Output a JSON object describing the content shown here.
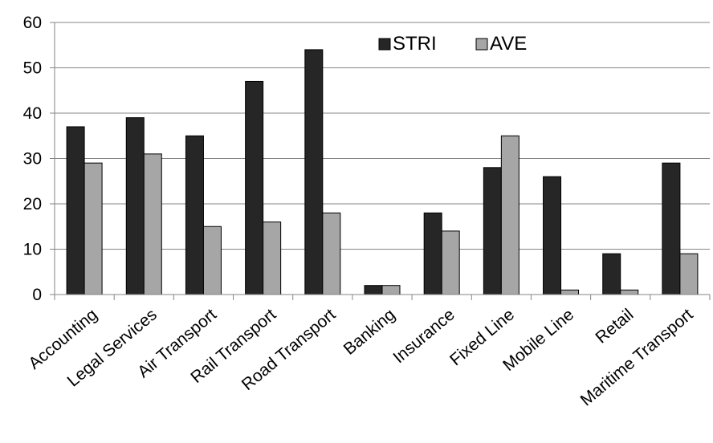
{
  "chart_data": {
    "type": "bar",
    "title": "",
    "xlabel": "",
    "ylabel": "",
    "ylim": [
      0,
      60
    ],
    "yticks": [
      0,
      10,
      20,
      30,
      40,
      50,
      60
    ],
    "grid": true,
    "legend_position": "top-right",
    "categories": [
      "Accounting",
      "Legal Services",
      "Air Transport",
      "Rail Transport",
      "Road Transport",
      "Banking",
      "Insurance",
      "Fixed Line",
      "Mobile Line",
      "Retail",
      "Maritime Transport"
    ],
    "series": [
      {
        "name": "STRI",
        "color": "#262626",
        "values": [
          37,
          39,
          35,
          47,
          54,
          2,
          18,
          28,
          26,
          9,
          29
        ]
      },
      {
        "name": "AVE",
        "color": "#a6a6a6",
        "values": [
          29,
          31,
          15,
          16,
          18,
          2,
          14,
          35,
          1,
          1,
          9
        ]
      }
    ]
  }
}
